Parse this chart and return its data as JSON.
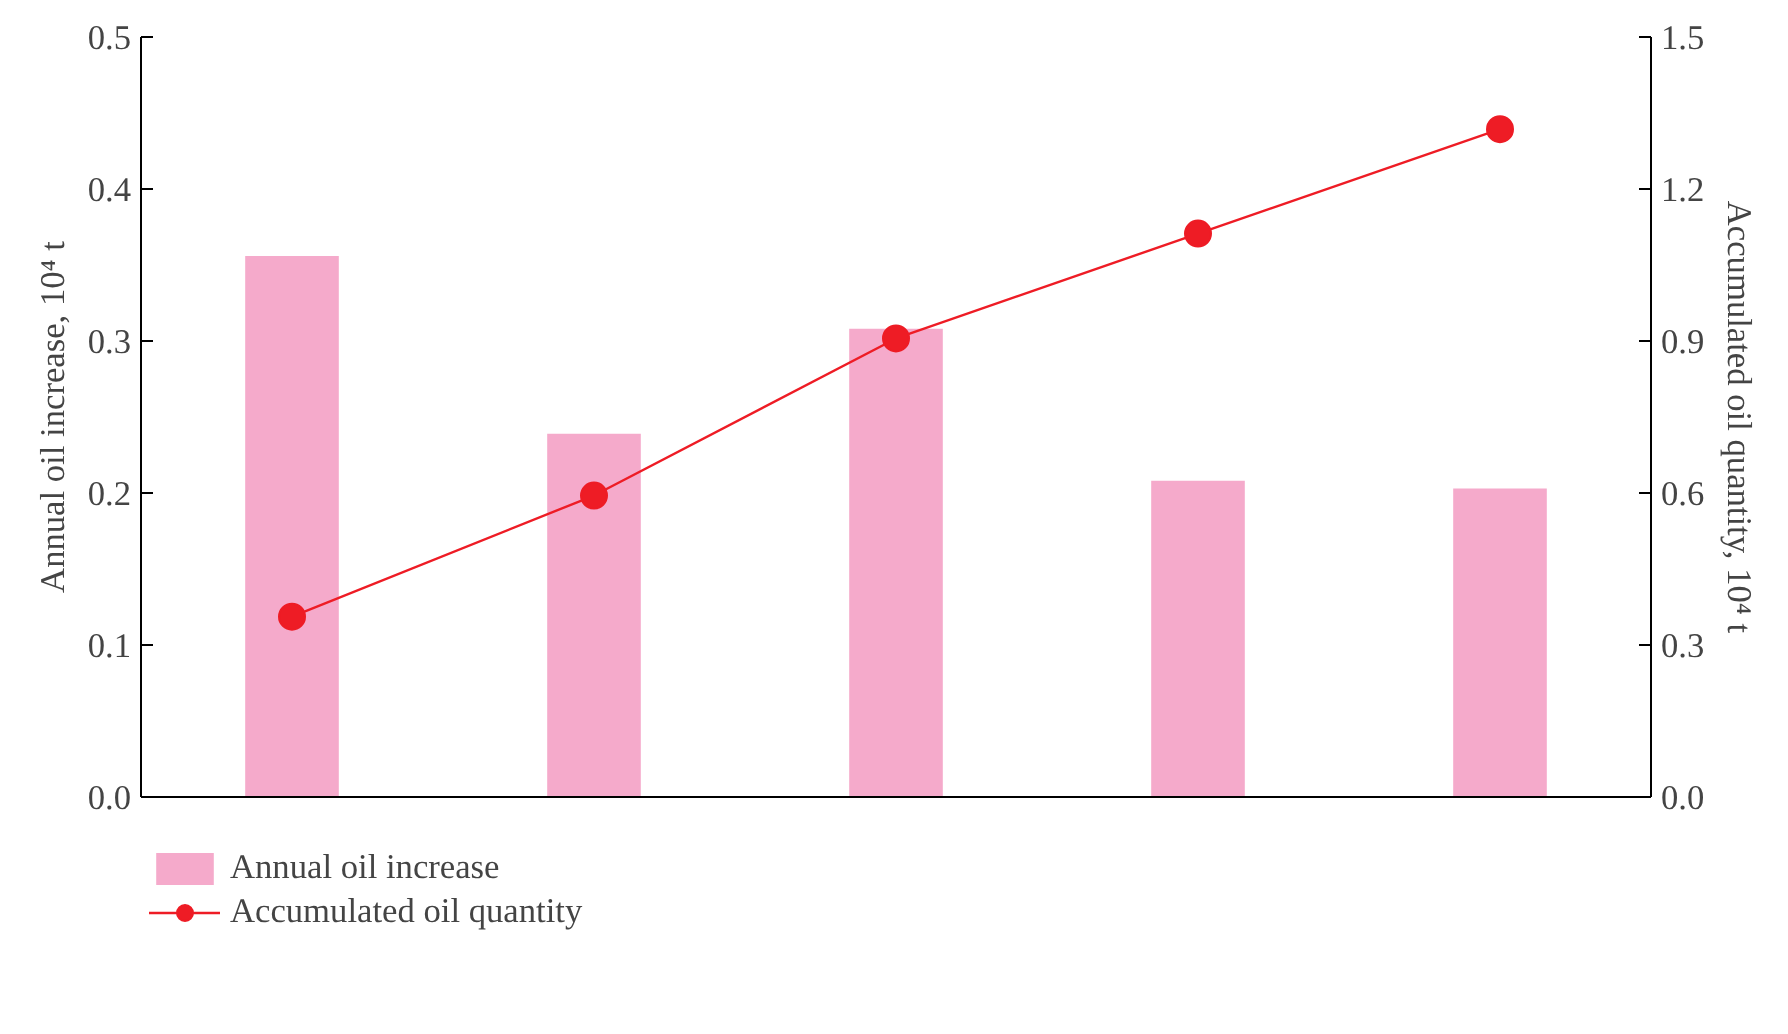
{
  "chart_data": {
    "type": "bar",
    "categories": [
      null,
      null,
      null,
      null,
      null
    ],
    "ylabel": "Annual oil increase, 10⁴ t",
    "y2label": "Accumulated oil quantity, 10⁴ t",
    "ylim": [
      0,
      0.5
    ],
    "yticks": [
      {
        "value": 0,
        "label": "0.0"
      },
      0.1,
      0.2,
      0.3,
      0.4,
      0.5
    ],
    "y2lim": [
      0,
      1.5
    ],
    "y2ticks": [
      {
        "value": 0,
        "label": "0.0"
      },
      0.3,
      0.6,
      0.9,
      1.2,
      1.5
    ],
    "series": [
      {
        "name": "Annual oil increase",
        "color": "#f5aacb",
        "values": [
          0.356,
          0.239,
          0.308,
          0.208,
          0.203
        ]
      },
      {
        "name": "Accumulated oil quantity",
        "color": "#ee1c25",
        "type": "line",
        "axis": "y2",
        "marker": "circle",
        "values": [
          0.356,
          0.595,
          0.905,
          1.112,
          1.318
        ]
      }
    ],
    "legend": "bottom left",
    "grid": false
  }
}
